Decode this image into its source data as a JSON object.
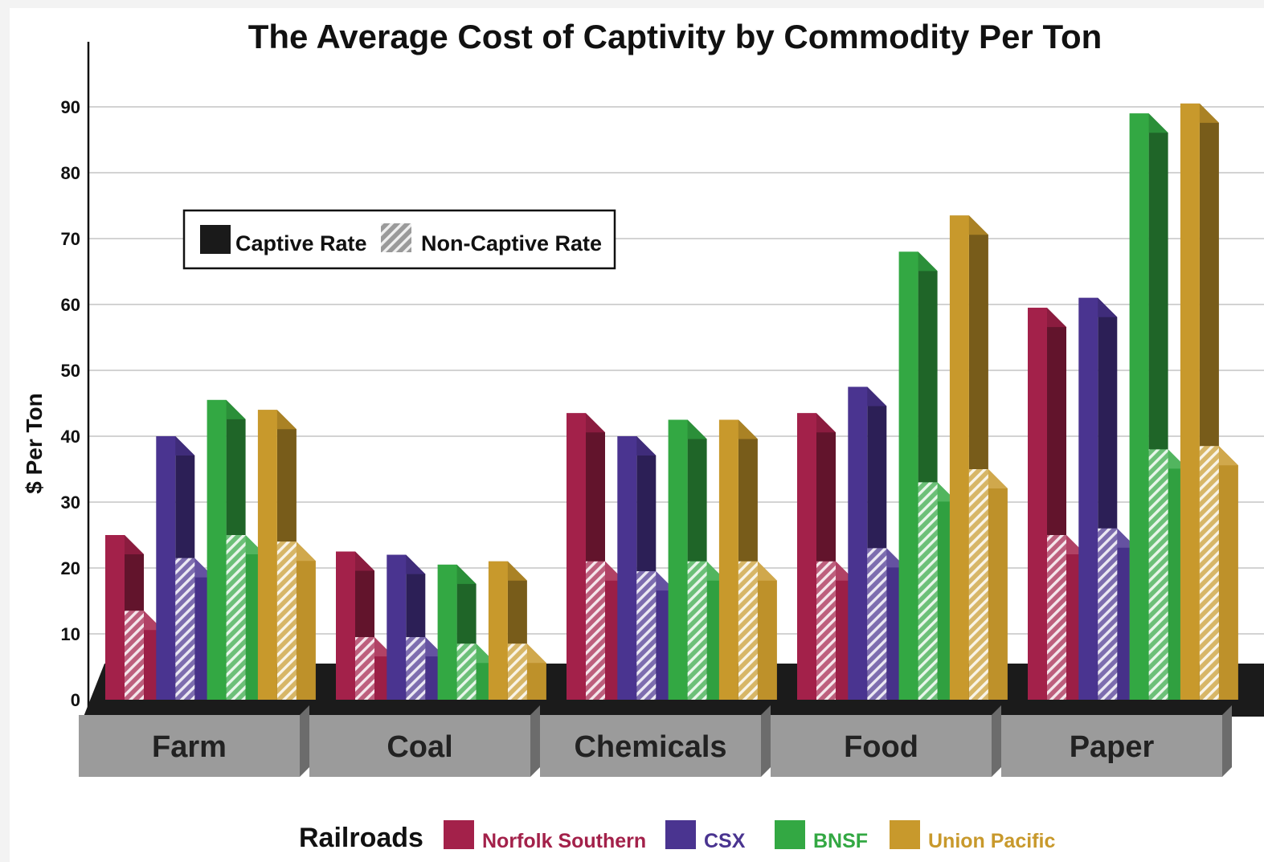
{
  "chart_data": {
    "type": "bar",
    "title": "The Average Cost of Captivity by Commodity Per Ton",
    "ylabel": "$ Per Ton",
    "xlabel": "",
    "ylim": [
      0,
      90
    ],
    "yticks": [
      0,
      10,
      20,
      30,
      40,
      50,
      60,
      70,
      80,
      90
    ],
    "grid": true,
    "categories": [
      "Farm",
      "Coal",
      "Chemicals",
      "Food",
      "Paper"
    ],
    "rate_legend": {
      "captive": "Captive Rate",
      "non_captive": "Non-Captive Rate",
      "placement": "top-left"
    },
    "railroads_label": "Railroads",
    "series": [
      {
        "name": "Norfolk Southern",
        "color": "#a3214a",
        "captive": [
          25,
          22.5,
          43.5,
          43.5,
          59.5
        ],
        "non_captive": [
          13.5,
          9.5,
          21,
          21,
          25
        ]
      },
      {
        "name": "CSX",
        "color": "#4a3490",
        "captive": [
          40,
          22,
          40,
          47.5,
          61
        ],
        "non_captive": [
          21.5,
          9.5,
          19.5,
          23,
          26
        ]
      },
      {
        "name": "BNSF",
        "color": "#33a843",
        "captive": [
          45.5,
          20.5,
          42.5,
          68,
          89
        ],
        "non_captive": [
          25,
          8.5,
          21,
          33,
          38
        ]
      },
      {
        "name": "Union Pacific",
        "color": "#c8992c",
        "captive": [
          44,
          21,
          42.5,
          73.5,
          90.5
        ],
        "non_captive": [
          24,
          8.5,
          21,
          35,
          38.5
        ]
      }
    ]
  }
}
